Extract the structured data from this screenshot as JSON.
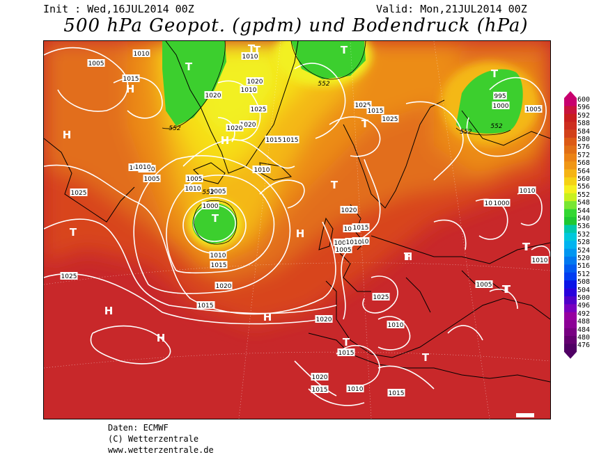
{
  "header": {
    "init_text": "Init : Wed,16JUL2014 00Z",
    "valid_text": "Valid: Mon,21JUL2014 00Z",
    "title": "500 hPa Geopot. (gpdm) und Bodendruck (hPa)"
  },
  "colorbar": {
    "levels": [
      "600",
      "596",
      "592",
      "588",
      "584",
      "580",
      "576",
      "572",
      "568",
      "564",
      "560",
      "556",
      "552",
      "548",
      "544",
      "540",
      "536",
      "532",
      "528",
      "524",
      "520",
      "516",
      "512",
      "508",
      "504",
      "500",
      "496",
      "492",
      "488",
      "484",
      "480",
      "476"
    ],
    "colors": [
      "#c8006e",
      "#c8143c",
      "#c81e1e",
      "#cd2d1e",
      "#d24119",
      "#dc5a14",
      "#e16e14",
      "#eb8214",
      "#f09614",
      "#f5b414",
      "#f5d214",
      "#f5f01e",
      "#c8f01e",
      "#78e632",
      "#32d732",
      "#1ec832",
      "#00c8aa",
      "#00c8dc",
      "#00b4f0",
      "#0096f0",
      "#0078f0",
      "#005af0",
      "#003cf0",
      "#0a14e6",
      "#2800dc",
      "#5000c8",
      "#7800be",
      "#9600a0",
      "#8c0096",
      "#780082",
      "#640070",
      "#500064"
    ]
  },
  "map": {
    "pressure_labels": [
      "1010",
      "1005",
      "1015",
      "1020",
      "1010",
      "1020",
      "1025",
      "1020",
      "1010",
      "1025",
      "1015",
      "1025",
      "1015",
      "1020",
      "1010",
      "1015",
      "1010",
      "1005",
      "1000",
      "1005",
      "1010",
      "1015",
      "1020",
      "1020",
      "1015",
      "1010",
      "1010",
      "1005",
      "1010",
      "1005",
      "1025",
      "1005",
      "1010",
      "1025",
      "1010",
      "1010",
      "1010",
      "1020",
      "1015",
      "1010",
      "1025",
      "1015",
      "1020",
      "1005",
      "1020",
      "1015",
      "995",
      "1000",
      "1005",
      "1010",
      "1015",
      "1010",
      "1000",
      "1000",
      "1010",
      "1010"
    ],
    "geopot_labels": [
      "552",
      "552",
      "552",
      "552",
      "552"
    ],
    "centers": [
      "T",
      "T",
      "T",
      "H",
      "H",
      "H",
      "H",
      "H",
      "T",
      "T",
      "T",
      "T",
      "T",
      "H",
      "H",
      "H",
      "T",
      "T",
      "T",
      "T",
      "T",
      "T",
      "T",
      "T"
    ]
  },
  "credits": {
    "line1": "Daten: ECMWF",
    "line2": "(C) Wetterzentrale",
    "line3": "www.wetterzentrale.de"
  }
}
